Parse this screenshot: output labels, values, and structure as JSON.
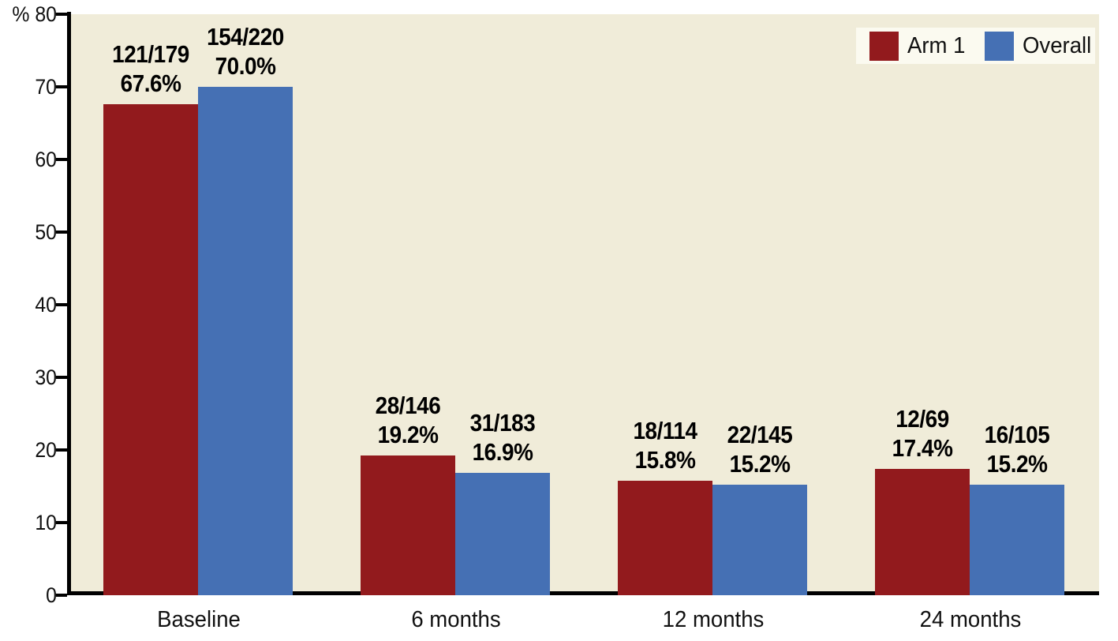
{
  "chart_data": {
    "type": "bar",
    "title": "",
    "y_unit_label": "%",
    "ylim": [
      0,
      80
    ],
    "yticks": [
      0,
      10,
      20,
      30,
      40,
      50,
      60,
      70,
      80
    ],
    "grid": false,
    "legend_position": "top-right",
    "categories": [
      "Baseline",
      "6 months",
      "12 months",
      "24 months"
    ],
    "series": [
      {
        "name": "Arm 1",
        "color": "#921a1d",
        "values": [
          67.6,
          19.2,
          15.8,
          17.4
        ],
        "bar_labels": [
          [
            "121/179",
            "67.6%"
          ],
          [
            "28/146",
            "19.2%"
          ],
          [
            "18/114",
            "15.8%"
          ],
          [
            "12/69",
            "17.4%"
          ]
        ]
      },
      {
        "name": "Overall",
        "color": "#4570b4",
        "values": [
          70.0,
          16.9,
          15.2,
          15.2
        ],
        "bar_labels": [
          [
            "154/220",
            "70.0%"
          ],
          [
            "31/183",
            "16.9%"
          ],
          [
            "22/145",
            "15.2%"
          ],
          [
            "16/105",
            "15.2%"
          ]
        ]
      }
    ],
    "colors": {
      "plot_bg": "#f0ecd9",
      "legend_bg": "#fbfaf0",
      "axis": "#000000",
      "text": "#111111"
    }
  }
}
